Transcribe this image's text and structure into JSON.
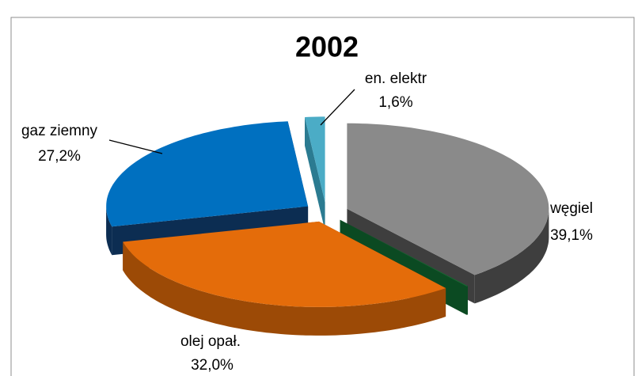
{
  "chart_data": {
    "type": "pie3d",
    "title": "2002",
    "categories": [
      "węgiel",
      null,
      "olej opał.",
      "gaz ziemny",
      "en. elektr"
    ],
    "values": [
      39.1,
      0.1,
      32.0,
      27.2,
      1.6
    ],
    "value_labels": [
      "39,1%",
      null,
      "32,0%",
      "27,2%",
      "1,6%"
    ],
    "colors": [
      "#8a8a8a",
      "#1b6a34",
      "#e46c0a",
      "#0070c0",
      "#4bacc6"
    ],
    "side_colors": [
      "#3e3e3e",
      "#0b4a22",
      "#9c4a06",
      "#0c2d52",
      "#2b7b91"
    ]
  }
}
